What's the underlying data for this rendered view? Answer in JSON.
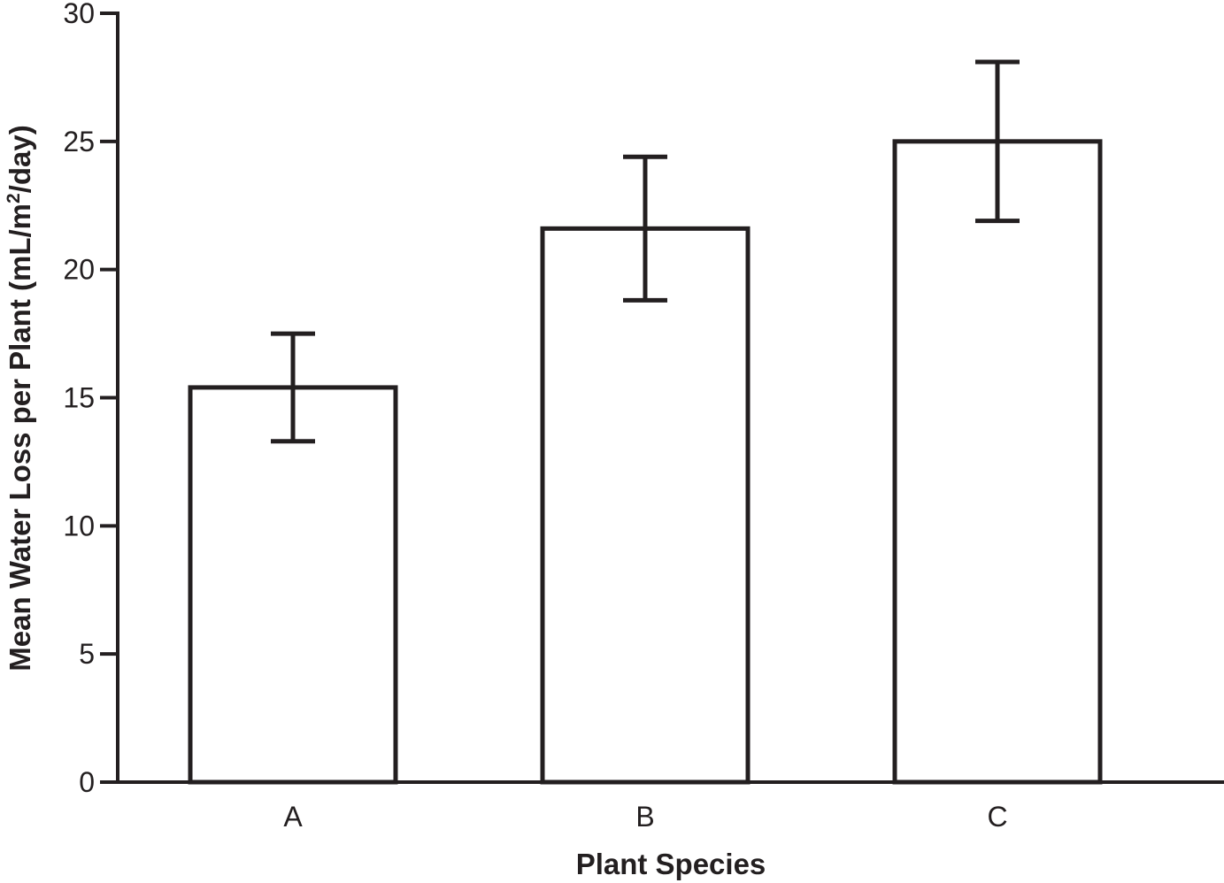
{
  "chart_data": {
    "type": "bar",
    "title": "",
    "xlabel": "Plant Species",
    "ylabel": {
      "prefix": "Mean Water Loss per Plant (mL/m",
      "superscript": "2",
      "suffix": "/day)"
    },
    "ylim": [
      0,
      30
    ],
    "yticks": [
      0,
      5,
      10,
      15,
      20,
      25,
      30
    ],
    "grid": false,
    "categories": [
      "A",
      "B",
      "C"
    ],
    "values": [
      15.4,
      21.6,
      25.0
    ],
    "error_bars": [
      {
        "low": 13.3,
        "high": 17.5
      },
      {
        "low": 18.8,
        "high": 24.4
      },
      {
        "low": 21.9,
        "high": 28.1
      }
    ],
    "colors": {
      "stroke": "#231f20",
      "bar_fill": "#ffffff"
    }
  }
}
